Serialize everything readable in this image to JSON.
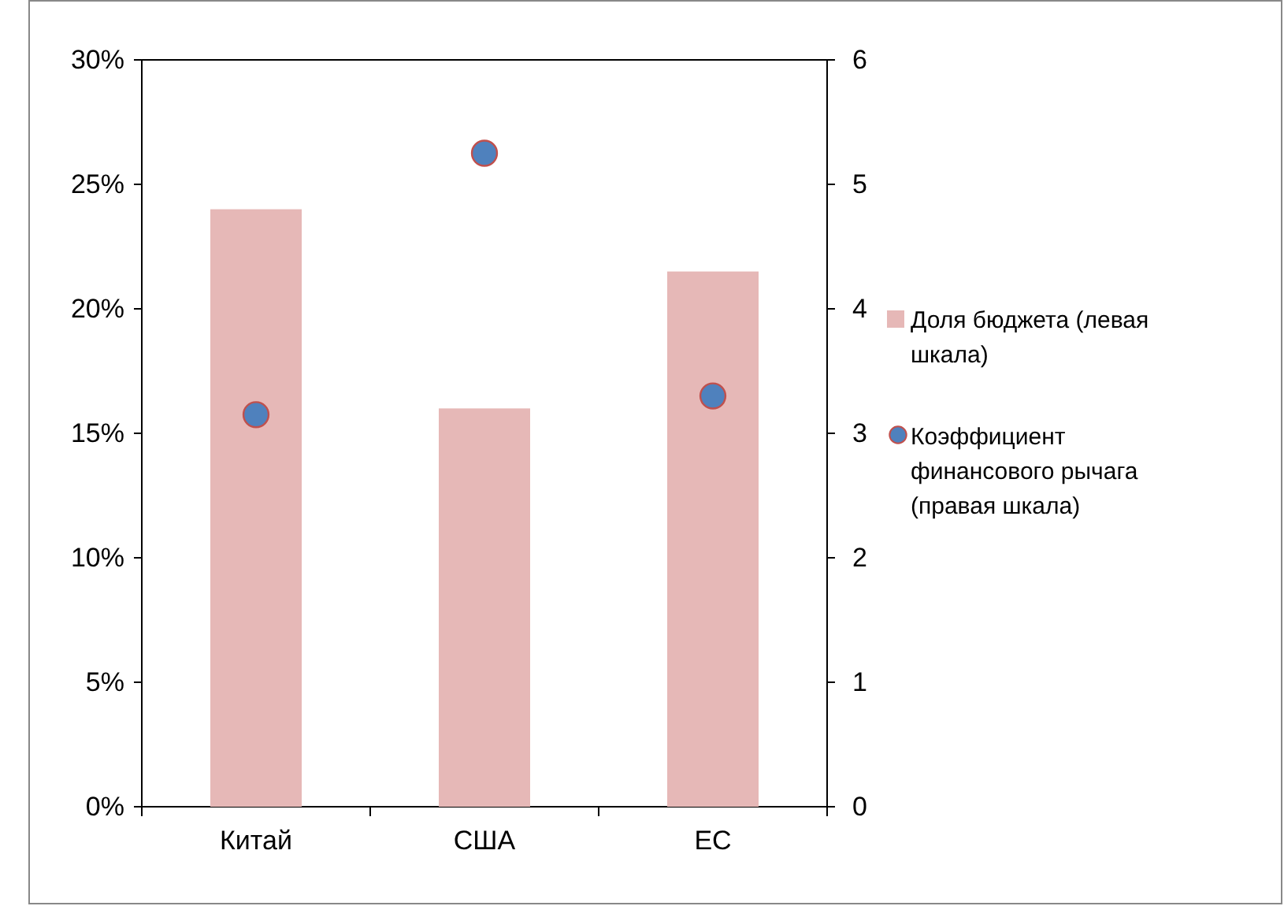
{
  "chart_data": {
    "type": "bar",
    "categories": [
      "Китай",
      "США",
      "ЕС"
    ],
    "series": [
      {
        "name": "Доля бюджета (левая шкала)",
        "color": "#e6b8b7",
        "values": [
          24,
          16,
          21.5
        ]
      },
      {
        "name": "Коэффициент финансового рычага (правая шкала)",
        "type": "scatter",
        "axis": "y2",
        "color": "#4f81bd",
        "values": [
          3.15,
          5.25,
          3.3
        ]
      }
    ],
    "ylim": [
      0,
      30
    ],
    "yticks": [
      {
        "value": 0,
        "label": "0%"
      },
      {
        "value": 5,
        "label": "5%"
      },
      {
        "value": 10,
        "label": "10%"
      },
      {
        "value": 15,
        "label": "15%"
      },
      {
        "value": 20,
        "label": "20%"
      },
      {
        "value": 25,
        "label": "25%"
      },
      {
        "value": 30,
        "label": "30%"
      }
    ],
    "y2lim": [
      0,
      6
    ],
    "y2ticks": [
      0,
      1,
      2,
      3,
      4,
      5,
      6
    ],
    "legend": "right",
    "marker": "circle",
    "grid": false
  }
}
